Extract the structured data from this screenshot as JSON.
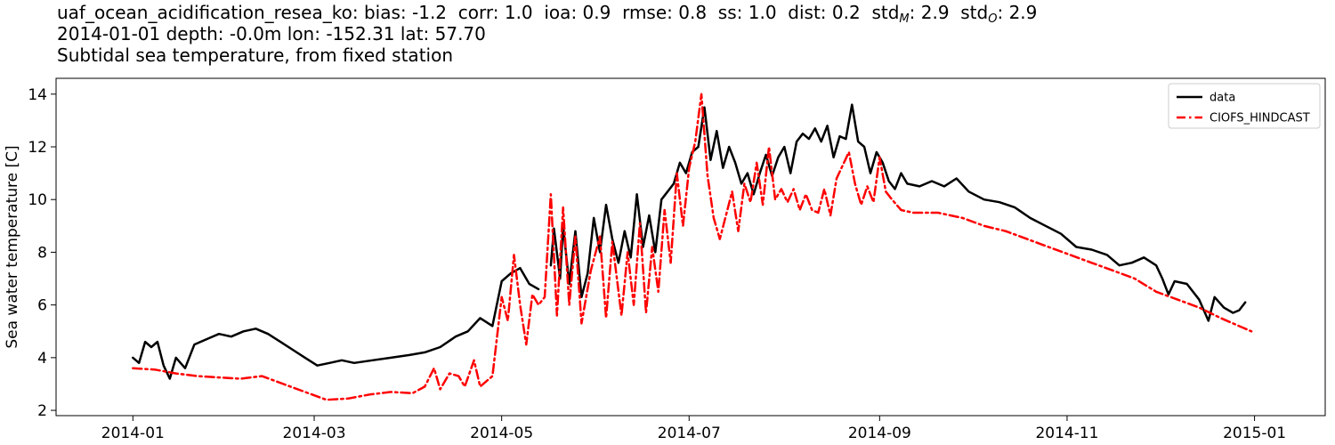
{
  "header": {
    "station": "uaf_ocean_acidification_resea_ko",
    "stats": [
      {
        "label": "bias",
        "value": "-1.2"
      },
      {
        "label": "corr",
        "value": "1.0"
      },
      {
        "label": "ioa",
        "value": "0.9"
      },
      {
        "label": "rmse",
        "value": "0.8"
      },
      {
        "label": "ss",
        "value": "1.0"
      },
      {
        "label": "dist",
        "value": "0.2"
      }
    ],
    "std_m": {
      "label": "std",
      "sub": "M",
      "value": "2.9"
    },
    "std_o": {
      "label": "std",
      "sub": "O",
      "value": "2.9"
    },
    "line2": "2014-01-01 depth: -0.0m lon: -152.31 lat: 57.70",
    "line3": "Subtidal sea temperature, from fixed station"
  },
  "chart_data": {
    "type": "line",
    "title": "Subtidal sea temperature, from fixed station",
    "xlabel": "",
    "ylabel": "Sea water temperature [C]",
    "xlim": [
      "2013-12-07",
      "2015-01-24"
    ],
    "ylim": [
      1.8,
      14.6
    ],
    "yticks": [
      2,
      4,
      6,
      8,
      10,
      12,
      14
    ],
    "xticks": [
      "2014-01-01",
      "2014-03-01",
      "2014-05-01",
      "2014-07-01",
      "2014-09-01",
      "2014-11-01",
      "2015-01-01"
    ],
    "xtick_labels": [
      "2014-01",
      "2014-03",
      "2014-05",
      "2014-07",
      "2014-09",
      "2014-11",
      "2015-01"
    ],
    "grid": false,
    "legend": "top-right",
    "series": [
      {
        "name": "data",
        "color": "#000000",
        "style": "solid",
        "points": [
          [
            "2014-01-01",
            4.0
          ],
          [
            "2014-01-03",
            3.8
          ],
          [
            "2014-01-05",
            4.6
          ],
          [
            "2014-01-07",
            4.4
          ],
          [
            "2014-01-09",
            4.6
          ],
          [
            "2014-01-11",
            3.7
          ],
          [
            "2014-01-13",
            3.2
          ],
          [
            "2014-01-15",
            4.0
          ],
          [
            "2014-01-18",
            3.6
          ],
          [
            "2014-01-21",
            4.5
          ],
          [
            "2014-01-25",
            4.7
          ],
          [
            "2014-01-29",
            4.9
          ],
          [
            "2014-02-02",
            4.8
          ],
          [
            "2014-02-06",
            5.0
          ],
          [
            "2014-02-10",
            5.1
          ],
          [
            "2014-02-14",
            4.9
          ],
          [
            "2014-02-18",
            4.6
          ],
          [
            "2014-02-22",
            4.3
          ],
          [
            "2014-02-26",
            4.0
          ],
          [
            "2014-03-02",
            3.7
          ],
          [
            "2014-03-06",
            3.8
          ],
          [
            "2014-03-10",
            3.9
          ],
          [
            "2014-03-14",
            3.8
          ],
          [
            "2014-03-20",
            3.9
          ],
          [
            "2014-03-26",
            4.0
          ],
          [
            "2014-04-01",
            4.1
          ],
          [
            "2014-04-06",
            4.2
          ],
          [
            "2014-04-11",
            4.4
          ],
          [
            "2014-04-16",
            4.8
          ],
          [
            "2014-04-20",
            5.0
          ],
          [
            "2014-04-24",
            5.5
          ],
          [
            "2014-04-28",
            5.2
          ],
          [
            "2014-05-01",
            6.9
          ],
          [
            "2014-05-04",
            7.2
          ],
          [
            "2014-05-07",
            7.4
          ],
          [
            "2014-05-10",
            6.8
          ],
          [
            "2014-05-13",
            6.6
          ],
          null,
          [
            "2014-05-17",
            7.5
          ],
          [
            "2014-05-18",
            8.9
          ],
          [
            "2014-05-20",
            7.0
          ],
          [
            "2014-05-21",
            9.0
          ],
          [
            "2014-05-23",
            6.8
          ],
          [
            "2014-05-25",
            8.8
          ],
          [
            "2014-05-27",
            6.3
          ],
          [
            "2014-05-29",
            7.2
          ],
          [
            "2014-05-31",
            9.3
          ],
          [
            "2014-06-02",
            8.0
          ],
          [
            "2014-06-04",
            9.8
          ],
          [
            "2014-06-06",
            8.5
          ],
          [
            "2014-06-08",
            7.6
          ],
          [
            "2014-06-10",
            8.8
          ],
          [
            "2014-06-12",
            7.8
          ],
          [
            "2014-06-14",
            10.2
          ],
          [
            "2014-06-16",
            8.2
          ],
          [
            "2014-06-18",
            9.4
          ],
          [
            "2014-06-20",
            8.0
          ],
          [
            "2014-06-22",
            10.0
          ],
          [
            "2014-06-24",
            10.3
          ],
          [
            "2014-06-26",
            10.6
          ],
          [
            "2014-06-28",
            11.4
          ],
          [
            "2014-06-30",
            11.0
          ],
          [
            "2014-07-02",
            11.8
          ],
          [
            "2014-07-04",
            12.0
          ],
          [
            "2014-07-06",
            13.5
          ],
          [
            "2014-07-08",
            11.5
          ],
          [
            "2014-07-10",
            12.6
          ],
          [
            "2014-07-12",
            11.2
          ],
          [
            "2014-07-14",
            12.0
          ],
          [
            "2014-07-16",
            11.4
          ],
          [
            "2014-07-18",
            10.6
          ],
          [
            "2014-07-20",
            11.0
          ],
          [
            "2014-07-22",
            10.2
          ],
          [
            "2014-07-24",
            11.0
          ],
          [
            "2014-07-26",
            11.7
          ],
          [
            "2014-07-28",
            10.9
          ],
          [
            "2014-07-30",
            11.6
          ],
          [
            "2014-08-01",
            12.0
          ],
          [
            "2014-08-03",
            11.0
          ],
          [
            "2014-08-05",
            12.2
          ],
          [
            "2014-08-07",
            12.5
          ],
          [
            "2014-08-09",
            12.3
          ],
          [
            "2014-08-11",
            12.7
          ],
          [
            "2014-08-13",
            12.2
          ],
          [
            "2014-08-15",
            12.8
          ],
          [
            "2014-08-17",
            11.6
          ],
          [
            "2014-08-19",
            12.4
          ],
          [
            "2014-08-21",
            12.3
          ],
          [
            "2014-08-23",
            13.6
          ],
          [
            "2014-08-25",
            12.2
          ],
          [
            "2014-08-27",
            12.0
          ],
          [
            "2014-08-29",
            11.0
          ],
          [
            "2014-08-31",
            11.8
          ],
          [
            "2014-09-02",
            11.4
          ],
          [
            "2014-09-04",
            10.7
          ],
          [
            "2014-09-06",
            10.4
          ],
          [
            "2014-09-08",
            11.0
          ],
          [
            "2014-09-10",
            10.6
          ],
          [
            "2014-09-14",
            10.5
          ],
          [
            "2014-09-18",
            10.7
          ],
          [
            "2014-09-22",
            10.5
          ],
          [
            "2014-09-26",
            10.8
          ],
          [
            "2014-09-30",
            10.3
          ],
          [
            "2014-10-05",
            10.0
          ],
          [
            "2014-10-10",
            9.9
          ],
          [
            "2014-10-15",
            9.7
          ],
          [
            "2014-10-20",
            9.3
          ],
          [
            "2014-10-25",
            9.0
          ],
          [
            "2014-10-30",
            8.7
          ],
          [
            "2014-11-04",
            8.2
          ],
          [
            "2014-11-09",
            8.1
          ],
          [
            "2014-11-14",
            7.9
          ],
          [
            "2014-11-18",
            7.5
          ],
          [
            "2014-11-22",
            7.6
          ],
          [
            "2014-11-26",
            7.8
          ],
          [
            "2014-11-30",
            7.5
          ],
          [
            "2014-12-02",
            7.0
          ],
          [
            "2014-12-04",
            6.4
          ],
          [
            "2014-12-06",
            6.9
          ],
          [
            "2014-12-10",
            6.8
          ],
          [
            "2014-12-14",
            6.2
          ],
          [
            "2014-12-17",
            5.4
          ],
          [
            "2014-12-19",
            6.3
          ],
          [
            "2014-12-22",
            5.9
          ],
          [
            "2014-12-25",
            5.7
          ],
          [
            "2014-12-27",
            5.8
          ],
          [
            "2014-12-29",
            6.1
          ]
        ]
      },
      {
        "name": "CIOFS_HINDCAST",
        "color": "#ff0000",
        "style": "dashdot",
        "points": [
          [
            "2014-01-01",
            3.6
          ],
          [
            "2014-01-08",
            3.55
          ],
          [
            "2014-01-15",
            3.4
          ],
          [
            "2014-01-22",
            3.3
          ],
          [
            "2014-01-29",
            3.25
          ],
          [
            "2014-02-05",
            3.2
          ],
          [
            "2014-02-12",
            3.3
          ],
          [
            "2014-02-19",
            3.0
          ],
          [
            "2014-02-26",
            2.7
          ],
          [
            "2014-03-05",
            2.4
          ],
          [
            "2014-03-12",
            2.45
          ],
          [
            "2014-03-19",
            2.6
          ],
          [
            "2014-03-26",
            2.7
          ],
          [
            "2014-04-02",
            2.65
          ],
          [
            "2014-04-06",
            2.9
          ],
          [
            "2014-04-09",
            3.6
          ],
          [
            "2014-04-11",
            2.8
          ],
          [
            "2014-04-14",
            3.4
          ],
          [
            "2014-04-17",
            3.3
          ],
          [
            "2014-04-19",
            2.9
          ],
          [
            "2014-04-22",
            3.9
          ],
          [
            "2014-04-24",
            2.9
          ],
          [
            "2014-04-28",
            3.3
          ],
          [
            "2014-05-01",
            6.3
          ],
          [
            "2014-05-03",
            5.4
          ],
          [
            "2014-05-05",
            7.9
          ],
          [
            "2014-05-07",
            6.0
          ],
          [
            "2014-05-09",
            4.5
          ],
          [
            "2014-05-11",
            6.4
          ],
          [
            "2014-05-13",
            6.0
          ],
          [
            "2014-05-15",
            6.3
          ],
          [
            "2014-05-17",
            10.2
          ],
          [
            "2014-05-19",
            5.6
          ],
          [
            "2014-05-21",
            9.7
          ],
          [
            "2014-05-23",
            6.0
          ],
          [
            "2014-05-25",
            8.6
          ],
          [
            "2014-05-27",
            5.3
          ],
          [
            "2014-05-30",
            7.3
          ],
          [
            "2014-06-02",
            8.6
          ],
          [
            "2014-06-04",
            5.5
          ],
          [
            "2014-06-06",
            8.4
          ],
          [
            "2014-06-09",
            5.6
          ],
          [
            "2014-06-11",
            8.0
          ],
          [
            "2014-06-13",
            6.0
          ],
          [
            "2014-06-15",
            9.1
          ],
          [
            "2014-06-17",
            5.7
          ],
          [
            "2014-06-19",
            8.2
          ],
          [
            "2014-06-21",
            6.5
          ],
          [
            "2014-06-23",
            9.6
          ],
          [
            "2014-06-25",
            7.6
          ],
          [
            "2014-06-27",
            11.0
          ],
          [
            "2014-06-29",
            9.0
          ],
          [
            "2014-07-01",
            11.2
          ],
          [
            "2014-07-03",
            12.2
          ],
          [
            "2014-07-05",
            14.0
          ],
          [
            "2014-07-07",
            10.9
          ],
          [
            "2014-07-09",
            9.3
          ],
          [
            "2014-07-11",
            8.5
          ],
          [
            "2014-07-13",
            9.4
          ],
          [
            "2014-07-15",
            10.3
          ],
          [
            "2014-07-17",
            8.8
          ],
          [
            "2014-07-19",
            10.6
          ],
          [
            "2014-07-21",
            9.9
          ],
          [
            "2014-07-23",
            11.4
          ],
          [
            "2014-07-25",
            9.8
          ],
          [
            "2014-07-27",
            12.0
          ],
          [
            "2014-07-29",
            10.0
          ],
          [
            "2014-07-31",
            10.4
          ],
          [
            "2014-08-02",
            9.9
          ],
          [
            "2014-08-04",
            10.4
          ],
          [
            "2014-08-06",
            9.6
          ],
          [
            "2014-08-08",
            10.2
          ],
          [
            "2014-08-10",
            9.6
          ],
          [
            "2014-08-12",
            9.5
          ],
          [
            "2014-08-14",
            10.4
          ],
          [
            "2014-08-16",
            9.4
          ],
          [
            "2014-08-18",
            10.8
          ],
          [
            "2014-08-20",
            11.3
          ],
          [
            "2014-08-22",
            11.8
          ],
          [
            "2014-08-24",
            10.6
          ],
          [
            "2014-08-26",
            9.8
          ],
          [
            "2014-08-28",
            10.5
          ],
          [
            "2014-08-30",
            9.9
          ],
          [
            "2014-09-01",
            11.6
          ],
          [
            "2014-09-03",
            10.3
          ],
          [
            "2014-09-05",
            10.0
          ],
          [
            "2014-09-08",
            9.6
          ],
          [
            "2014-09-12",
            9.5
          ],
          [
            "2014-09-16",
            9.5
          ],
          [
            "2014-09-20",
            9.5
          ],
          [
            "2014-09-24",
            9.4
          ],
          [
            "2014-09-28",
            9.3
          ],
          [
            "2014-10-05",
            9.0
          ],
          [
            "2014-10-12",
            8.8
          ],
          [
            "2014-10-19",
            8.5
          ],
          [
            "2014-10-26",
            8.2
          ],
          [
            "2014-11-02",
            7.9
          ],
          [
            "2014-11-09",
            7.6
          ],
          [
            "2014-11-16",
            7.3
          ],
          [
            "2014-11-23",
            7.0
          ],
          [
            "2014-11-30",
            6.5
          ],
          [
            "2014-12-07",
            6.2
          ],
          [
            "2014-12-14",
            5.9
          ],
          [
            "2014-12-21",
            5.5
          ],
          [
            "2014-12-31",
            5.0
          ]
        ]
      }
    ]
  }
}
